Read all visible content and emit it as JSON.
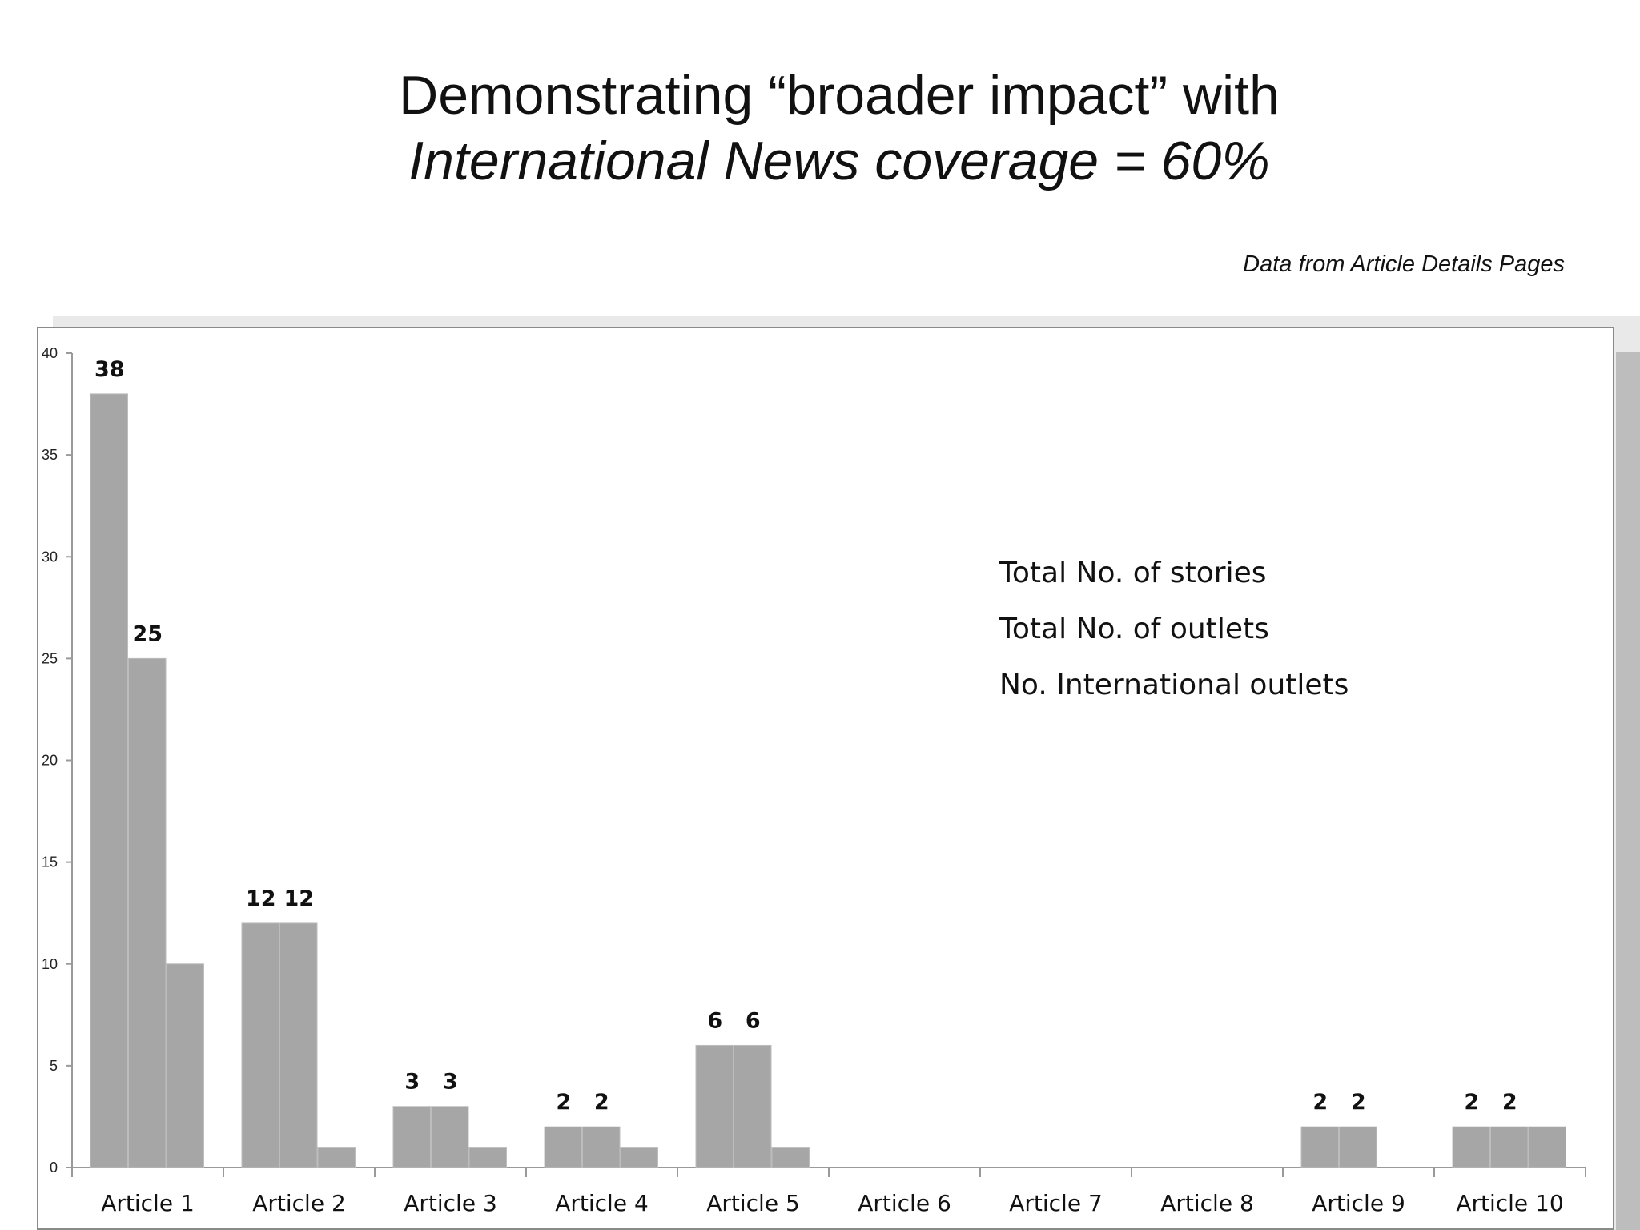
{
  "title_line1": "Demonstrating “broader impact” with",
  "title_line2": "International News coverage = 60%",
  "source_note": "Data from Article Details Pages",
  "chart_data": {
    "type": "bar",
    "categories": [
      "Article 1",
      "Article 2",
      "Article 3",
      "Article 4",
      "Article 5",
      "Article 6",
      "Article 7",
      "Article 8",
      "Article 9",
      "Article 10"
    ],
    "series": [
      {
        "name": "Total No. of stories",
        "values": [
          38,
          12,
          3,
          2,
          6,
          0,
          0,
          0,
          2,
          2
        ]
      },
      {
        "name": "Total No. of outlets",
        "values": [
          25,
          12,
          3,
          2,
          6,
          0,
          0,
          0,
          2,
          2
        ]
      },
      {
        "name": "No. International outlets",
        "values": [
          10,
          1,
          1,
          1,
          1,
          0,
          0,
          0,
          0,
          2
        ]
      }
    ],
    "data_labels": {
      "Total No. of stories": [
        38,
        12,
        3,
        2,
        6,
        null,
        null,
        null,
        2,
        2
      ],
      "Total No. of outlets": [
        25,
        12,
        3,
        2,
        6,
        null,
        null,
        null,
        2,
        2
      ]
    },
    "yticks": [
      0,
      5,
      10,
      15,
      20,
      25,
      30,
      35,
      40
    ],
    "ylim": [
      0,
      40
    ],
    "bar_color": "#a6a6a6",
    "legend_position": "top-right"
  }
}
